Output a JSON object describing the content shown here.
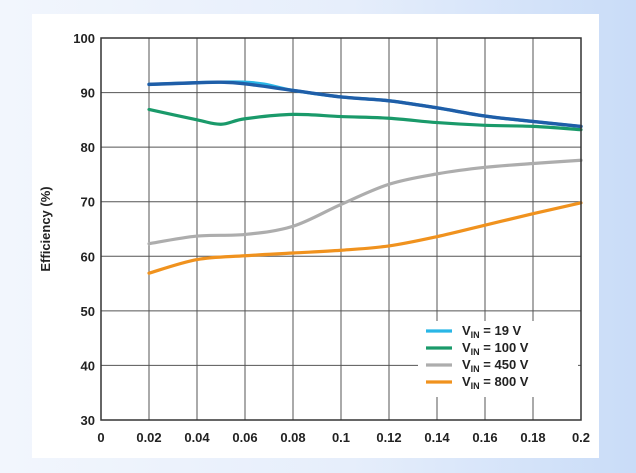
{
  "chart_data": {
    "type": "line",
    "title": "",
    "xlabel": "",
    "ylabel": "Efficiency (%)",
    "xlim": [
      0,
      0.2
    ],
    "ylim": [
      30,
      100
    ],
    "x_ticks": [
      "0",
      "0.02",
      "0.04",
      "0.06",
      "0.08",
      "0.1",
      "0.12",
      "0.14",
      "0.16",
      "0.18",
      "0.2"
    ],
    "y_ticks": [
      "30",
      "40",
      "50",
      "60",
      "70",
      "80",
      "90",
      "100"
    ],
    "grid": true,
    "legend_position": "bottom-right",
    "series": [
      {
        "name": "V_IN = 19 V",
        "label_main": "V",
        "label_sub": "IN",
        "label_rest": " = 19 V",
        "color": "#29b6e6",
        "x": [
          0.02,
          0.06,
          0.08,
          0.1,
          0.12,
          0.14,
          0.16,
          0.18,
          0.2
        ],
        "y": [
          91.5,
          91.9,
          90.4,
          89.2,
          88.5,
          87.2,
          85.7,
          84.7,
          83.8
        ]
      },
      {
        "name": "V_IN = 100 V",
        "label_main": "V",
        "label_sub": "IN",
        "label_rest": " = 100 V",
        "color": "#1a9a6a",
        "x": [
          0.02,
          0.04,
          0.05,
          0.06,
          0.08,
          0.1,
          0.12,
          0.14,
          0.16,
          0.18,
          0.2
        ],
        "y": [
          86.9,
          85.0,
          84.2,
          85.2,
          86.0,
          85.6,
          85.3,
          84.5,
          84.0,
          83.8,
          83.2
        ]
      },
      {
        "name": "V_IN = 450 V",
        "label_main": "V",
        "label_sub": "IN",
        "label_rest": " = 450 V",
        "color": "#adadad",
        "x": [
          0.02,
          0.04,
          0.06,
          0.08,
          0.1,
          0.12,
          0.14,
          0.16,
          0.18,
          0.2
        ],
        "y": [
          62.3,
          63.7,
          64.0,
          65.5,
          69.5,
          73.2,
          75.1,
          76.3,
          77.0,
          77.6
        ]
      },
      {
        "name": "V_IN = 800 V",
        "label_main": "V",
        "label_sub": "IN",
        "label_rest": " = 800 V",
        "color": "#f0921e",
        "x": [
          0.02,
          0.04,
          0.06,
          0.08,
          0.1,
          0.12,
          0.14,
          0.16,
          0.18,
          0.2
        ],
        "y": [
          56.9,
          59.4,
          60.1,
          60.6,
          61.1,
          61.9,
          63.6,
          65.7,
          67.8,
          69.8
        ]
      }
    ]
  },
  "overlay_line": {
    "color": "#1f5ea8",
    "x": [
      0.02,
      0.04,
      0.05,
      0.06,
      0.08,
      0.1,
      0.12,
      0.14,
      0.16,
      0.18,
      0.2
    ],
    "y": [
      91.5,
      91.8,
      91.9,
      91.6,
      90.4,
      89.2,
      88.5,
      87.2,
      85.7,
      84.7,
      83.8
    ]
  }
}
